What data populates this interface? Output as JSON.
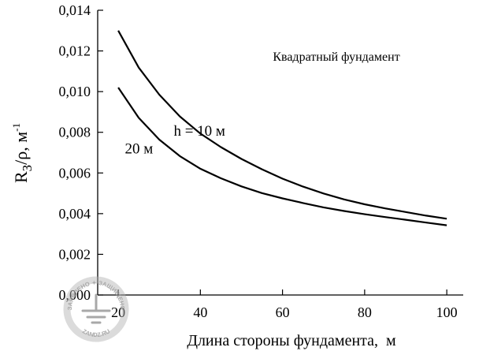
{
  "chart_data": {
    "type": "line",
    "title": "Квадратный фундамент",
    "xlabel": "Длина стороны фундамента,  м",
    "ylabel": {
      "main": "R",
      "sub": "З",
      "rest": "/ρ, м",
      "sup": "-1"
    },
    "xlim": [
      15,
      104
    ],
    "ylim": [
      0,
      0.014
    ],
    "x_ticks": [
      20,
      40,
      60,
      80,
      100
    ],
    "x_tick_labels": [
      "20",
      "40",
      "60",
      "80",
      "100"
    ],
    "y_ticks": [
      0,
      0.002,
      0.004,
      0.006,
      0.008,
      0.01,
      0.012,
      0.014
    ],
    "y_tick_labels": [
      "0,000",
      "0,002",
      "0,004",
      "0,006",
      "0,008",
      "0,010",
      "0,012",
      "0,014"
    ],
    "grid": false,
    "series": [
      {
        "name": "h = 10 м",
        "x": [
          20,
          25,
          30,
          35,
          40,
          45,
          50,
          55,
          60,
          65,
          70,
          75,
          80,
          85,
          90,
          95,
          100
        ],
        "y": [
          0.013,
          0.01118,
          0.00985,
          0.00878,
          0.00794,
          0.00727,
          0.00669,
          0.00618,
          0.00572,
          0.00533,
          0.00499,
          0.0047,
          0.00446,
          0.00426,
          0.00408,
          0.0039,
          0.00375
        ]
      },
      {
        "name": "20 м",
        "x": [
          20,
          25,
          30,
          35,
          40,
          45,
          50,
          55,
          60,
          65,
          70,
          75,
          80,
          85,
          90,
          95,
          100
        ],
        "y": [
          0.0102,
          0.00871,
          0.00764,
          0.00683,
          0.00621,
          0.00574,
          0.00534,
          0.00501,
          0.00475,
          0.00452,
          0.00431,
          0.00413,
          0.00397,
          0.00383,
          0.0037,
          0.00356,
          0.00343
        ]
      }
    ],
    "annotations": [
      {
        "text": "h = 10 м",
        "series": 0
      },
      {
        "text": "20 м",
        "series": 1
      }
    ]
  },
  "watermark": {
    "top_text": "ЗАЯВЛЕНО ✦ ЗАЩИЩЕНО",
    "bottom_text": "ZANDZ.RU",
    "icon": "grounding-icon",
    "color": "#9a9a9a"
  }
}
